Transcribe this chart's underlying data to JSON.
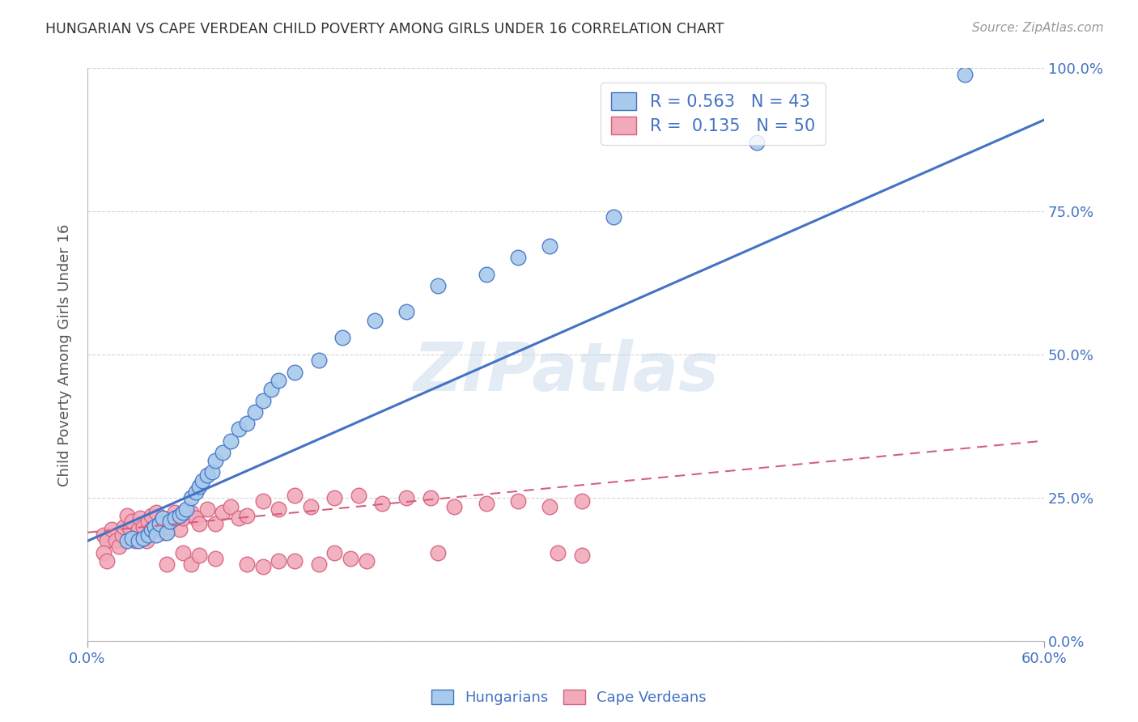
{
  "title": "HUNGARIAN VS CAPE VERDEAN CHILD POVERTY AMONG GIRLS UNDER 16 CORRELATION CHART",
  "source": "Source: ZipAtlas.com",
  "ylabel": "Child Poverty Among Girls Under 16",
  "xlim": [
    0.0,
    0.6
  ],
  "ylim": [
    0.0,
    1.0
  ],
  "xticks_vals": [
    0.0,
    0.6
  ],
  "xticks_labels": [
    "0.0%",
    "60.0%"
  ],
  "yticks_vals": [
    0.0,
    0.25,
    0.5,
    0.75,
    1.0
  ],
  "yticks_labels": [
    "0.0%",
    "25.0%",
    "50.0%",
    "75.0%",
    "100.0%"
  ],
  "hungarian_R": 0.563,
  "hungarian_N": 43,
  "capeverdean_R": 0.135,
  "capeverdean_N": 50,
  "hungarian_color": "#A8CAEC",
  "capeverdean_color": "#F2AABA",
  "line_hungarian_color": "#4472C4",
  "line_capeverdean_color": "#D46080",
  "background_color": "#FFFFFF",
  "grid_color": "#CCCCCC",
  "axis_label_color": "#4472C4",
  "watermark": "ZIPatlas",
  "hun_line_x0": 0.0,
  "hun_line_y0": 0.175,
  "hun_line_x1": 0.6,
  "hun_line_y1": 0.91,
  "cape_line_x0": 0.0,
  "cape_line_y0": 0.19,
  "cape_line_x1": 0.3,
  "cape_line_y1": 0.27,
  "hungarian_x": [
    0.025,
    0.028,
    0.032,
    0.035,
    0.038,
    0.04,
    0.042,
    0.043,
    0.045,
    0.047,
    0.05,
    0.052,
    0.055,
    0.058,
    0.06,
    0.062,
    0.065,
    0.068,
    0.07,
    0.072,
    0.075,
    0.078,
    0.08,
    0.085,
    0.09,
    0.095,
    0.1,
    0.105,
    0.11,
    0.115,
    0.12,
    0.13,
    0.145,
    0.16,
    0.18,
    0.2,
    0.22,
    0.25,
    0.27,
    0.29,
    0.33,
    0.42,
    0.55
  ],
  "hungarian_y": [
    0.175,
    0.18,
    0.175,
    0.18,
    0.185,
    0.195,
    0.2,
    0.185,
    0.205,
    0.215,
    0.19,
    0.21,
    0.215,
    0.22,
    0.225,
    0.23,
    0.25,
    0.26,
    0.27,
    0.28,
    0.29,
    0.295,
    0.315,
    0.33,
    0.35,
    0.37,
    0.38,
    0.4,
    0.42,
    0.44,
    0.455,
    0.47,
    0.49,
    0.53,
    0.56,
    0.575,
    0.62,
    0.64,
    0.67,
    0.69,
    0.74,
    0.87,
    0.99
  ],
  "capeverdean_x": [
    0.01,
    0.012,
    0.015,
    0.018,
    0.02,
    0.022,
    0.023,
    0.025,
    0.027,
    0.028,
    0.03,
    0.032,
    0.033,
    0.035,
    0.037,
    0.038,
    0.04,
    0.042,
    0.043,
    0.045,
    0.047,
    0.048,
    0.05,
    0.052,
    0.055,
    0.058,
    0.06,
    0.065,
    0.068,
    0.07,
    0.075,
    0.08,
    0.085,
    0.09,
    0.095,
    0.1,
    0.11,
    0.12,
    0.13,
    0.14,
    0.155,
    0.17,
    0.185,
    0.2,
    0.215,
    0.23,
    0.25,
    0.27,
    0.29,
    0.31
  ],
  "capeverdean_y": [
    0.185,
    0.175,
    0.195,
    0.175,
    0.165,
    0.185,
    0.2,
    0.22,
    0.195,
    0.21,
    0.175,
    0.195,
    0.215,
    0.2,
    0.175,
    0.21,
    0.22,
    0.195,
    0.225,
    0.205,
    0.215,
    0.19,
    0.2,
    0.21,
    0.225,
    0.195,
    0.215,
    0.225,
    0.215,
    0.205,
    0.23,
    0.205,
    0.225,
    0.235,
    0.215,
    0.22,
    0.245,
    0.23,
    0.255,
    0.235,
    0.25,
    0.255,
    0.24,
    0.25,
    0.25,
    0.235,
    0.24,
    0.245,
    0.235,
    0.245
  ],
  "cape_extra_x": [
    0.01,
    0.012,
    0.05,
    0.06,
    0.065,
    0.07,
    0.08,
    0.1,
    0.11,
    0.12,
    0.13,
    0.145,
    0.155,
    0.165,
    0.175,
    0.22,
    0.295,
    0.31
  ],
  "cape_extra_y": [
    0.155,
    0.14,
    0.135,
    0.155,
    0.135,
    0.15,
    0.145,
    0.135,
    0.13,
    0.14,
    0.14,
    0.135,
    0.155,
    0.145,
    0.14,
    0.155,
    0.155,
    0.15
  ]
}
